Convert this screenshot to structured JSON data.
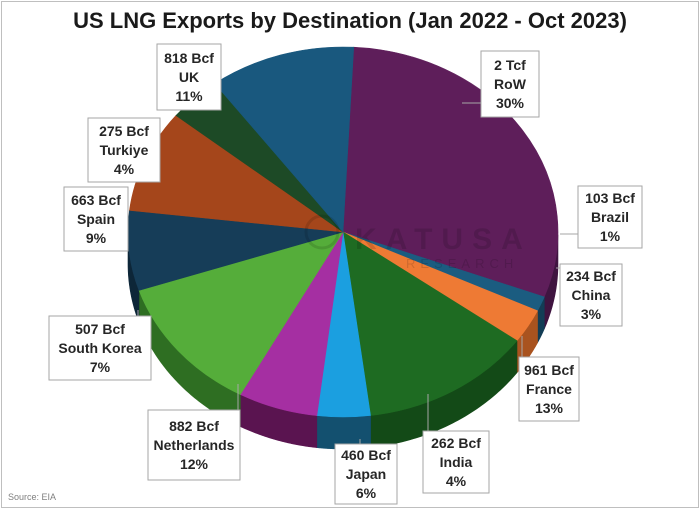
{
  "chart_data": {
    "type": "pie",
    "title": "US LNG Exports by Destination (Jan 2022 - Oct 2023)",
    "source": "Source: EIA",
    "watermark": {
      "line1": "KATUSA",
      "line2": "RESEARCH"
    },
    "slices": [
      {
        "name": "RoW",
        "volume": "2 Tcf",
        "percent_label": "30%",
        "value": 30,
        "color": "#5e1e5a",
        "side": "#3f1440"
      },
      {
        "name": "Brazil",
        "volume": "103 Bcf",
        "percent_label": "1%",
        "value": 1.3,
        "color": "#1b5c80",
        "side": "#123d55"
      },
      {
        "name": "China",
        "volume": "234 Bcf",
        "percent_label": "3%",
        "value": 3,
        "color": "#ee7a34",
        "side": "#a9531f"
      },
      {
        "name": "France",
        "volume": "961 Bcf",
        "percent_label": "13%",
        "value": 13,
        "color": "#1e6b22",
        "side": "#134a17"
      },
      {
        "name": "India",
        "volume": "262 Bcf",
        "percent_label": "4%",
        "value": 4,
        "color": "#1b9fe0",
        "side": "#13506f"
      },
      {
        "name": "Japan",
        "volume": "460 Bcf",
        "percent_label": "6%",
        "value": 6,
        "color": "#a52fa2",
        "side": "#5a1450"
      },
      {
        "name": "Netherlands",
        "volume": "882 Bcf",
        "percent_label": "12%",
        "value": 12,
        "color": "#55ad3a",
        "side": "#2e6e22"
      },
      {
        "name": "South Korea",
        "volume": "507 Bcf",
        "percent_label": "7%",
        "value": 7,
        "color": "#163d58",
        "side": "#0d2638"
      },
      {
        "name": "Spain",
        "volume": "663 Bcf",
        "percent_label": "9%",
        "value": 9,
        "color": "#a5461b",
        "side": "#6a2c10"
      },
      {
        "name": "Turkiye",
        "volume": "275 Bcf",
        "percent_label": "4%",
        "value": 4,
        "color": "#1d4a26",
        "side": "#122f18"
      },
      {
        "name": "UK",
        "volume": "818 Bcf",
        "percent_label": "11%",
        "value": 11,
        "color": "#19587e",
        "side": "#103a54"
      }
    ]
  }
}
